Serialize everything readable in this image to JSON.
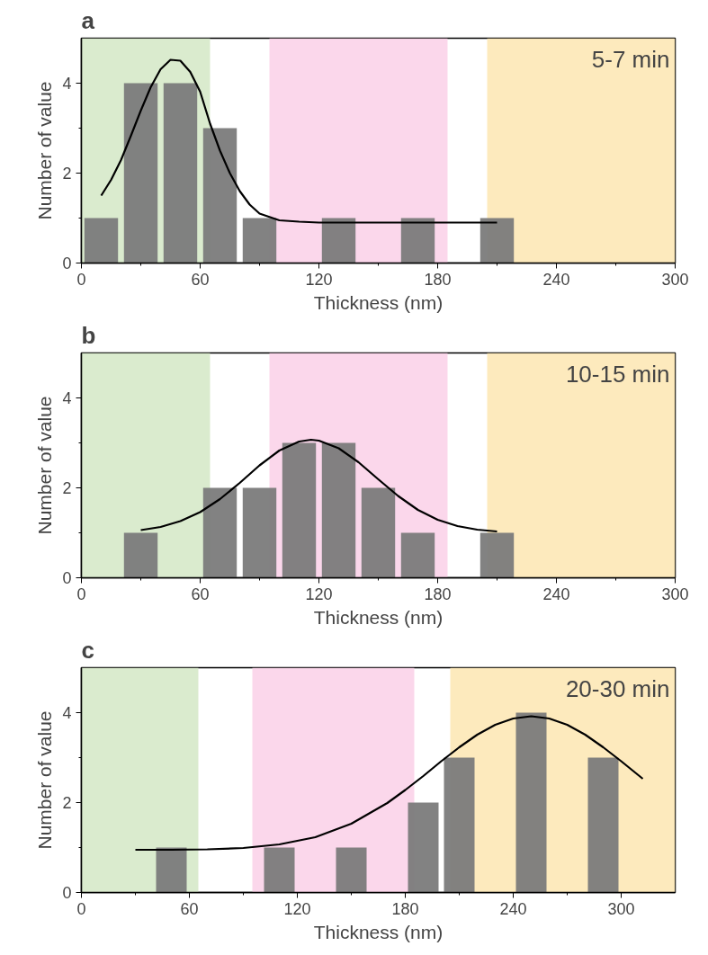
{
  "chart_data": [
    {
      "type": "bar",
      "title": "a",
      "xlabel": "Thickness (nm)",
      "ylabel": "Number of value",
      "annotations": [
        "5-7 min"
      ],
      "xlim": [
        0,
        300
      ],
      "ylim": [
        0,
        5
      ],
      "xticks": [
        0,
        60,
        120,
        180,
        240,
        300
      ],
      "yticks": [
        0,
        2,
        4
      ],
      "grid": false,
      "bands": [
        {
          "axis": "x",
          "from": 0,
          "to": 65,
          "color": "#d6e9c9"
        },
        {
          "axis": "x",
          "from": 95,
          "to": 185,
          "color": "#fbd3e9"
        },
        {
          "axis": "x",
          "from": 205,
          "to": 300,
          "color": "#fde8b6"
        }
      ],
      "series": [
        {
          "color": "#7b7b7b",
          "x": [
            10,
            30,
            50,
            70,
            90,
            130,
            170,
            210
          ],
          "values": [
            1,
            4,
            4,
            3,
            1,
            1,
            1,
            1
          ]
        },
        {
          "type": "line",
          "color": "#000000",
          "x": [
            10,
            15,
            20,
            25,
            30,
            35,
            40,
            45,
            50,
            55,
            60,
            65,
            70,
            75,
            80,
            85,
            90,
            100,
            110,
            120,
            150,
            180,
            210
          ],
          "values": [
            1.5,
            1.85,
            2.29,
            2.83,
            3.39,
            3.91,
            4.31,
            4.52,
            4.5,
            4.25,
            3.81,
            3.1,
            2.5,
            2.0,
            1.6,
            1.3,
            1.1,
            0.95,
            0.92,
            0.9,
            0.9,
            0.9,
            0.9
          ]
        }
      ]
    },
    {
      "type": "bar",
      "title": "b",
      "xlabel": "Thickness (nm)",
      "ylabel": "Number of value",
      "annotations": [
        "10-15 min"
      ],
      "xlim": [
        0,
        300
      ],
      "ylim": [
        0,
        5
      ],
      "xticks": [
        0,
        60,
        120,
        180,
        240,
        300
      ],
      "yticks": [
        0,
        2,
        4
      ],
      "grid": false,
      "bands": [
        {
          "axis": "x",
          "from": 0,
          "to": 65,
          "color": "#d6e9c9"
        },
        {
          "axis": "x",
          "from": 95,
          "to": 185,
          "color": "#fbd3e9"
        },
        {
          "axis": "x",
          "from": 205,
          "to": 300,
          "color": "#fde8b6"
        }
      ],
      "series": [
        {
          "color": "#7b7b7b",
          "x": [
            30,
            70,
            90,
            110,
            130,
            150,
            170,
            210
          ],
          "values": [
            1,
            2,
            2,
            3,
            3,
            2,
            1,
            1
          ]
        },
        {
          "type": "line",
          "color": "#000000",
          "x": [
            30,
            40,
            50,
            60,
            70,
            80,
            90,
            100,
            110,
            116,
            120,
            130,
            140,
            150,
            160,
            170,
            180,
            190,
            200,
            210
          ],
          "values": [
            1.06,
            1.13,
            1.26,
            1.46,
            1.75,
            2.11,
            2.5,
            2.83,
            3.03,
            3.07,
            3.05,
            2.88,
            2.57,
            2.19,
            1.82,
            1.51,
            1.29,
            1.15,
            1.07,
            1.03
          ]
        }
      ]
    },
    {
      "type": "bar",
      "title": "c",
      "xlabel": "Thickness (nm)",
      "ylabel": "Number of value",
      "annotations": [
        "20-30 min"
      ],
      "xlim": [
        0,
        330
      ],
      "ylim": [
        0,
        5
      ],
      "xticks": [
        0,
        60,
        120,
        180,
        240,
        300
      ],
      "yticks": [
        0,
        2,
        4
      ],
      "grid": false,
      "bands": [
        {
          "axis": "x",
          "from": 0,
          "to": 65,
          "color": "#d6e9c9"
        },
        {
          "axis": "x",
          "from": 95,
          "to": 185,
          "color": "#fbd3e9"
        },
        {
          "axis": "x",
          "from": 205,
          "to": 330,
          "color": "#fde8b6"
        }
      ],
      "series": [
        {
          "color": "#7b7b7b",
          "x": [
            50,
            110,
            150,
            190,
            210,
            250,
            290
          ],
          "values": [
            1,
            1,
            1,
            2,
            3,
            4,
            3
          ]
        },
        {
          "type": "line",
          "color": "#000000",
          "x": [
            30,
            50,
            70,
            90,
            110,
            130,
            150,
            170,
            180,
            190,
            200,
            210,
            220,
            230,
            240,
            250,
            260,
            270,
            280,
            290,
            300,
            312
          ],
          "values": [
            0.95,
            0.95,
            0.96,
            0.99,
            1.07,
            1.23,
            1.53,
            1.99,
            2.28,
            2.59,
            2.92,
            3.23,
            3.51,
            3.73,
            3.87,
            3.92,
            3.87,
            3.73,
            3.51,
            3.23,
            2.92,
            2.53
          ]
        }
      ]
    }
  ]
}
